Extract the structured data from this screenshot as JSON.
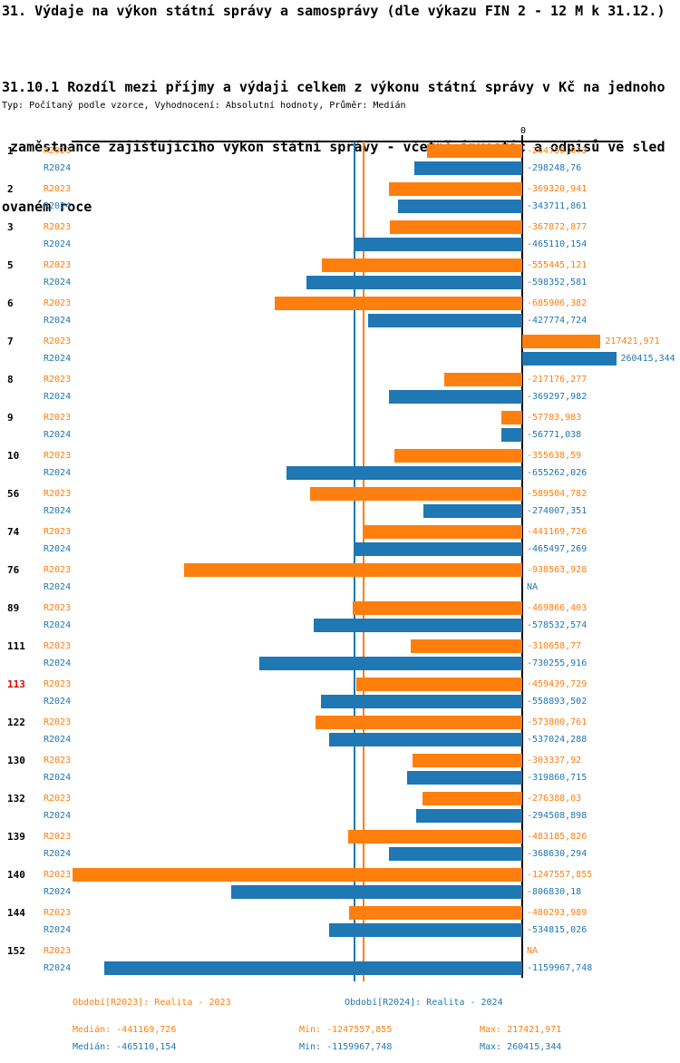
{
  "header": {
    "title": "31. Výdaje na výkon státní správy a samosprávy (dle výkazu FIN 2 - 12 M k 31.12.)",
    "subtitle_lines": [
      "31.10.1 Rozdíl mezi příjmy a výdaji celkem z výkonu státní správy v Kč na jednoho",
      " zaměstnance zajišťujícího výkon státní správy - včetně investic a odpisů ve sled",
      "ovaném roce"
    ],
    "meta": "Typ: Počítaný podle vzorce, Vyhodnocení: Absolutní hodnoty, Průměr: Medián"
  },
  "chart_data": {
    "type": "bar",
    "orientation": "horizontal",
    "zero_label": "0",
    "na_label": "NA",
    "series_names": [
      "R2023",
      "R2024"
    ],
    "colors": {
      "r2023": "#ff7f0e",
      "r2024": "#1f77b4",
      "highlight_id": "#dd0000",
      "axis": "#000000"
    },
    "axis_range": [
      -1260000,
      270000
    ],
    "highlighted_category": "113",
    "categories": [
      "1",
      "2",
      "3",
      "5",
      "6",
      "7",
      "8",
      "9",
      "10",
      "56",
      "74",
      "76",
      "89",
      "111",
      "113",
      "122",
      "130",
      "132",
      "139",
      "140",
      "144",
      "152"
    ],
    "median_lines": {
      "r2023": -441169.726,
      "r2024": -465110.154
    },
    "rows": [
      {
        "id": "1",
        "values": {
          "r2023": -264759.073,
          "r2024": -298248.76
        },
        "labels": {
          "r2023": "-264759,073",
          "r2024": "-298248,76"
        }
      },
      {
        "id": "2",
        "values": {
          "r2023": -369320.941,
          "r2024": -343711.861
        },
        "labels": {
          "r2023": "-369320,941",
          "r2024": "-343711,861"
        }
      },
      {
        "id": "3",
        "values": {
          "r2023": -367872.877,
          "r2024": -465110.154
        },
        "labels": {
          "r2023": "-367872,877",
          "r2024": "-465110,154"
        }
      },
      {
        "id": "5",
        "values": {
          "r2023": -555445.121,
          "r2024": -598352.581
        },
        "labels": {
          "r2023": "-555445,121",
          "r2024": "-598352,581"
        }
      },
      {
        "id": "6",
        "values": {
          "r2023": -685906.382,
          "r2024": -427774.724
        },
        "labels": {
          "r2023": "-685906,382",
          "r2024": "-427774,724"
        }
      },
      {
        "id": "7",
        "values": {
          "r2023": 217421.971,
          "r2024": 260415.344
        },
        "labels": {
          "r2023": "217421,971",
          "r2024": "260415,344"
        }
      },
      {
        "id": "8",
        "values": {
          "r2023": -217176.277,
          "r2024": -369297.982
        },
        "labels": {
          "r2023": "-217176,277",
          "r2024": "-369297,982"
        }
      },
      {
        "id": "9",
        "values": {
          "r2023": -57783.983,
          "r2024": -56771.038
        },
        "labels": {
          "r2023": "-57783,983",
          "r2024": "-56771,038"
        }
      },
      {
        "id": "10",
        "values": {
          "r2023": -355638.59,
          "r2024": -655262.026
        },
        "labels": {
          "r2023": "-355638,59",
          "r2024": "-655262,026"
        }
      },
      {
        "id": "56",
        "values": {
          "r2023": -589504.782,
          "r2024": -274007.351
        },
        "labels": {
          "r2023": "-589504,782",
          "r2024": "-274007,351"
        }
      },
      {
        "id": "74",
        "values": {
          "r2023": -441169.726,
          "r2024": -465497.269
        },
        "labels": {
          "r2023": "-441169,726",
          "r2024": "-465497,269"
        }
      },
      {
        "id": "76",
        "values": {
          "r2023": -938563.928,
          "r2024": null
        },
        "labels": {
          "r2023": "-938563,928",
          "r2024": "NA"
        }
      },
      {
        "id": "89",
        "values": {
          "r2023": -469866.403,
          "r2024": -578532.574
        },
        "labels": {
          "r2023": "-469866,403",
          "r2024": "-578532,574"
        }
      },
      {
        "id": "111",
        "values": {
          "r2023": -310658.77,
          "r2024": -730255.916
        },
        "labels": {
          "r2023": "-310658,77",
          "r2024": "-730255,916"
        }
      },
      {
        "id": "113",
        "values": {
          "r2023": -459439.729,
          "r2024": -558893.502
        },
        "labels": {
          "r2023": "-459439,729",
          "r2024": "-558893,502"
        }
      },
      {
        "id": "122",
        "values": {
          "r2023": -573800.761,
          "r2024": -537024.288
        },
        "labels": {
          "r2023": "-573800,761",
          "r2024": "-537024,288"
        }
      },
      {
        "id": "130",
        "values": {
          "r2023": -303337.92,
          "r2024": -319860.715
        },
        "labels": {
          "r2023": "-303337,92",
          "r2024": "-319860,715"
        }
      },
      {
        "id": "132",
        "values": {
          "r2023": -276388.03,
          "r2024": -294508.898
        },
        "labels": {
          "r2023": "-276388,03",
          "r2024": "-294508,898"
        }
      },
      {
        "id": "139",
        "values": {
          "r2023": -483185.826,
          "r2024": -368630.294
        },
        "labels": {
          "r2023": "-483185,826",
          "r2024": "-368630,294"
        }
      },
      {
        "id": "140",
        "values": {
          "r2023": -1247557.855,
          "r2024": -806830.18
        },
        "labels": {
          "r2023": "-1247557,855",
          "r2024": "-806830,18"
        }
      },
      {
        "id": "144",
        "values": {
          "r2023": -480293.989,
          "r2024": -534815.026
        },
        "labels": {
          "r2023": "-480293,989",
          "r2024": "-534815,026"
        }
      },
      {
        "id": "152",
        "values": {
          "r2023": null,
          "r2024": -1159967.748
        },
        "labels": {
          "r2023": "NA",
          "r2024": "-1159967,748"
        }
      }
    ]
  },
  "legend": {
    "period_r2023": "Období[R2023]: Realita - 2023",
    "period_r2024": "Období[R2024]: Realita - 2024",
    "stats_r2023": {
      "median": "Medián: -441169,726",
      "min": "Min: -1247557,855",
      "max": "Max: 217421,971"
    },
    "stats_r2024": {
      "median": "Medián: -465110,154",
      "min": "Min: -1159967,748",
      "max": "Max: 260415,344"
    }
  }
}
